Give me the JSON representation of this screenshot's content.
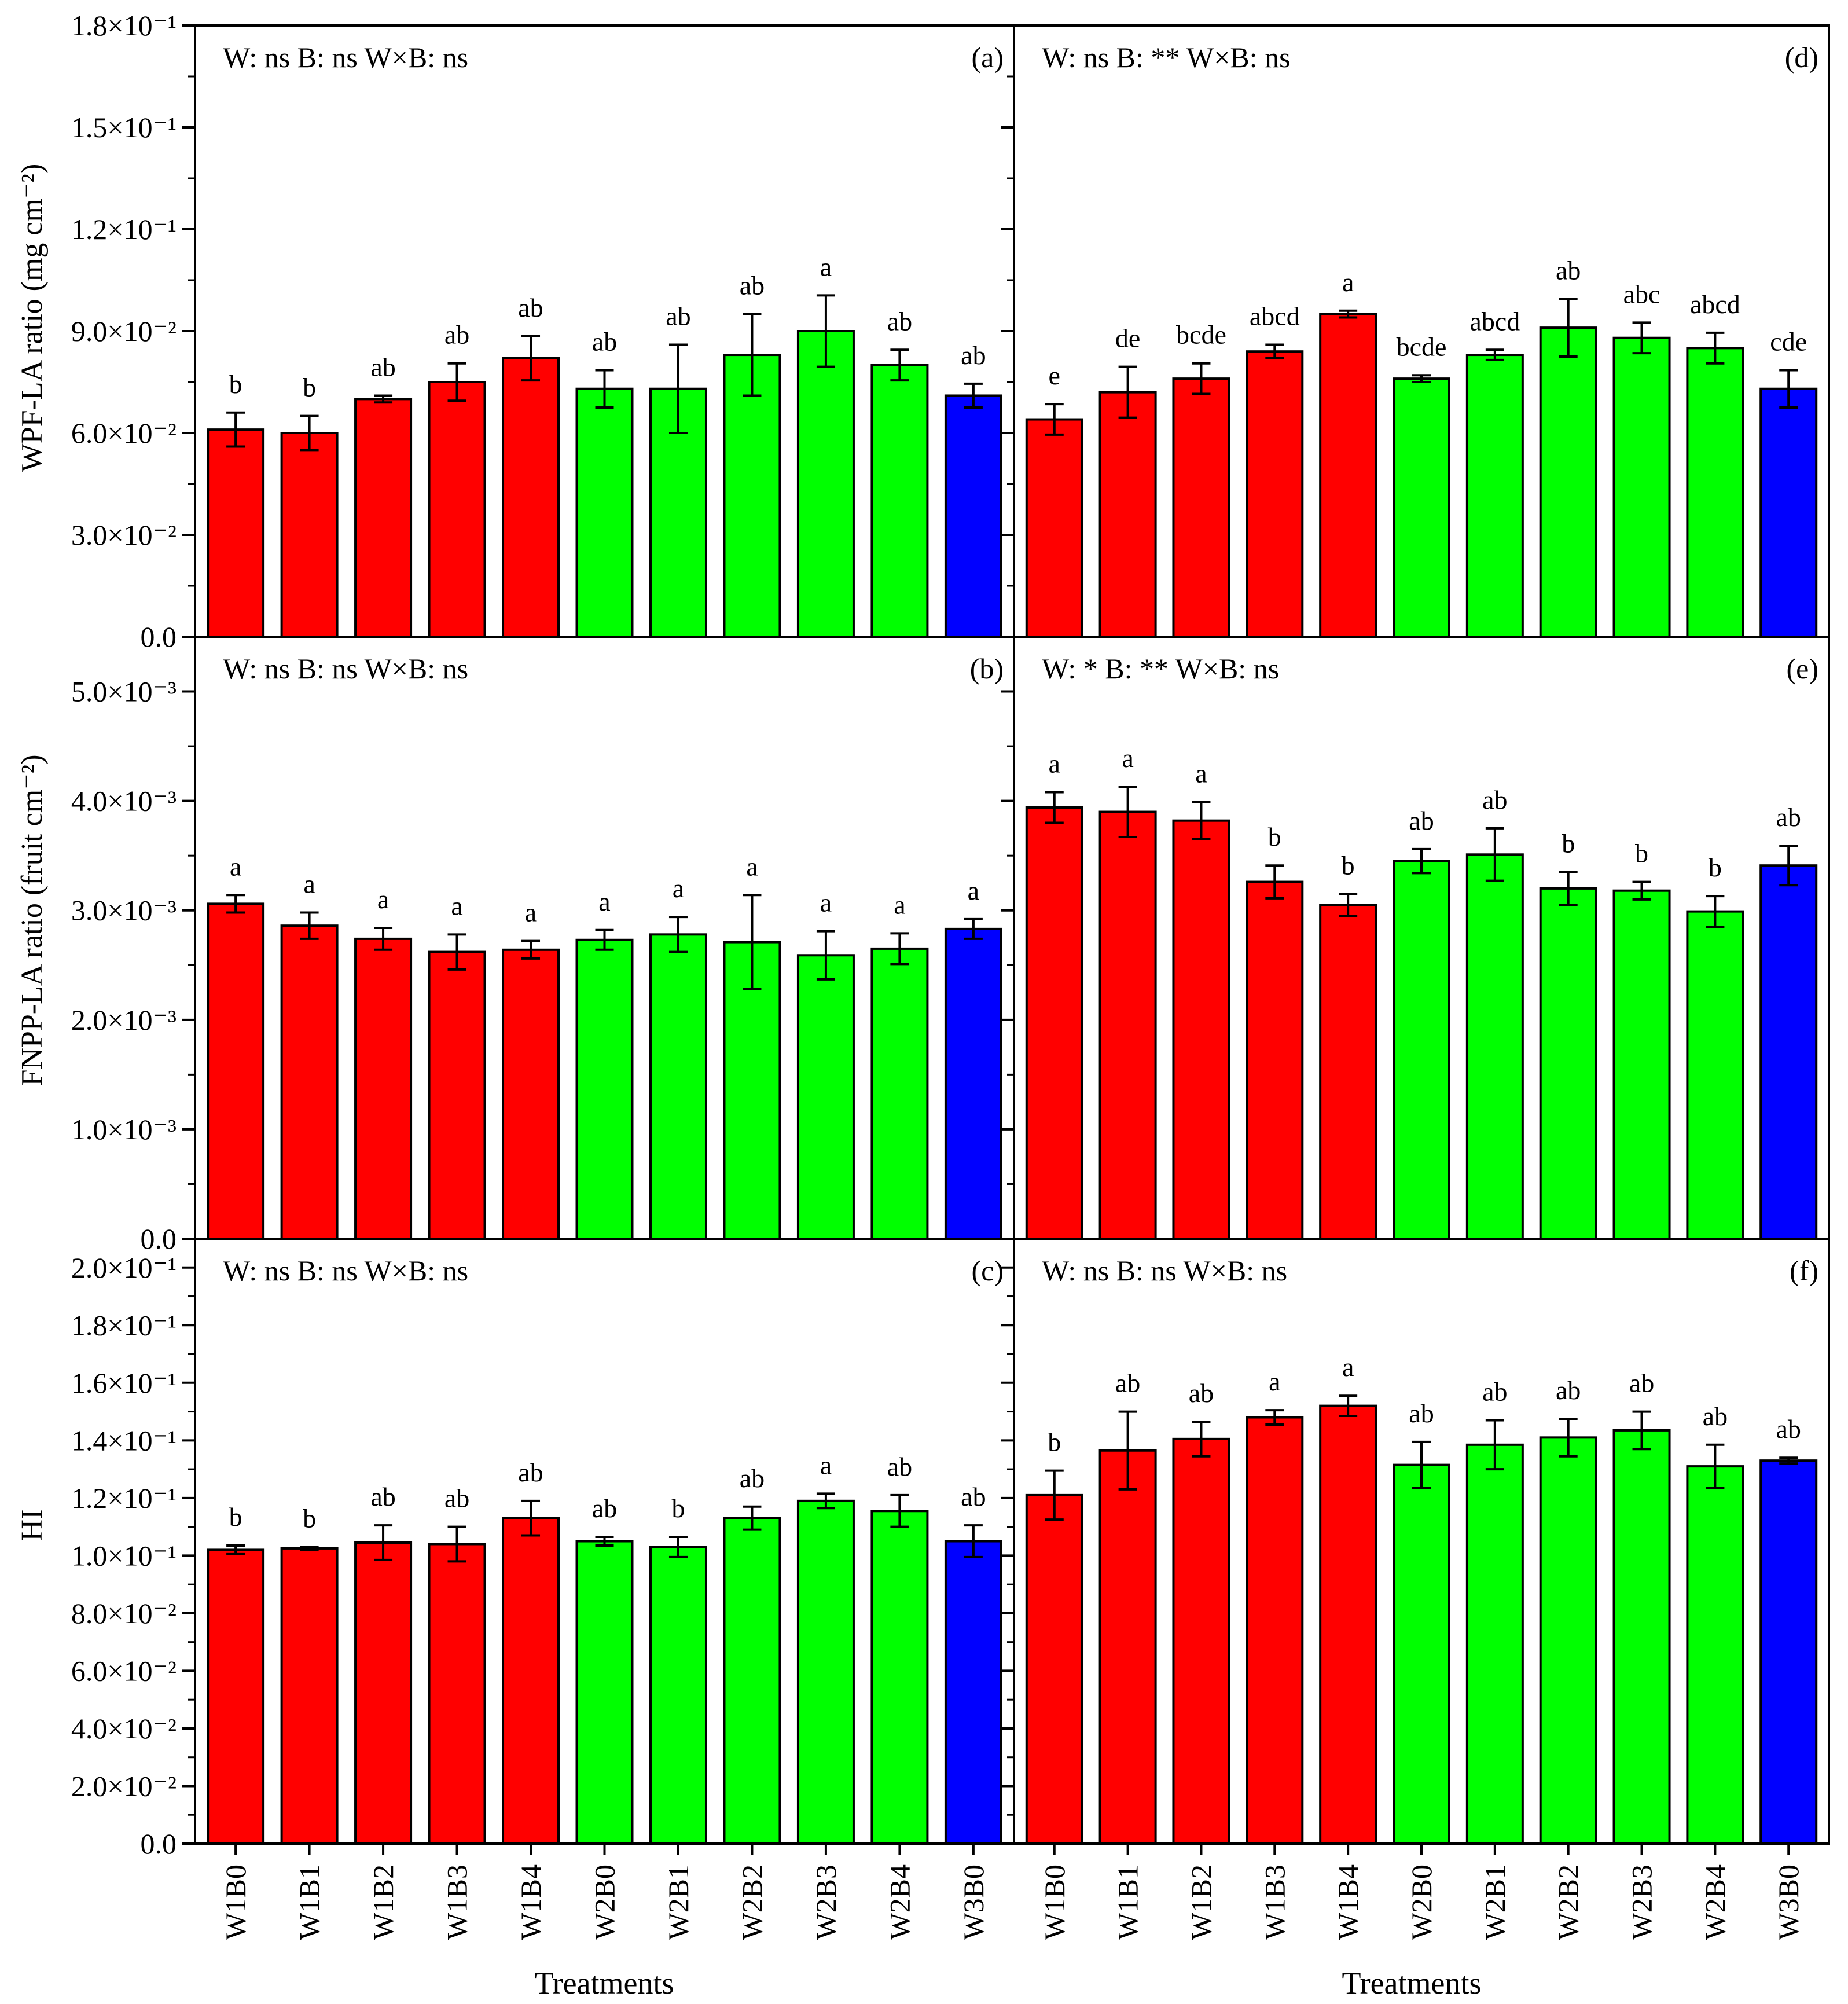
{
  "figure": {
    "x_title": "Treatments",
    "categories": [
      "W1B0",
      "W1B1",
      "W1B2",
      "W1B3",
      "W1B4",
      "W2B0",
      "W2B1",
      "W2B2",
      "W2B3",
      "W2B4",
      "W3B0"
    ],
    "colors": [
      "#ff0000",
      "#ff0000",
      "#ff0000",
      "#ff0000",
      "#ff0000",
      "#00ff00",
      "#00ff00",
      "#00ff00",
      "#00ff00",
      "#00ff00",
      "#0000ff"
    ],
    "rows": [
      {
        "ylabel": "WPF-LA ratio (mg cm⁻²)",
        "ylim": [
          0,
          0.18
        ],
        "ticks": [
          {
            "value": 0.0,
            "label": "0.0"
          },
          {
            "value": 0.03,
            "label": "3.0×10⁻²"
          },
          {
            "value": 0.06,
            "label": "6.0×10⁻²"
          },
          {
            "value": 0.09,
            "label": "9.0×10⁻²"
          },
          {
            "value": 0.12,
            "label": "1.2×10⁻¹"
          },
          {
            "value": 0.15,
            "label": "1.5×10⁻¹"
          },
          {
            "value": 0.18,
            "label": "1.8×10⁻¹"
          }
        ]
      },
      {
        "ylabel": "FNPP-LA ratio (fruit cm⁻²)",
        "ylim": [
          0,
          0.0055
        ],
        "ticks": [
          {
            "value": 0.0,
            "label": "0.0"
          },
          {
            "value": 0.001,
            "label": "1.0×10⁻³"
          },
          {
            "value": 0.002,
            "label": "2.0×10⁻³"
          },
          {
            "value": 0.003,
            "label": "3.0×10⁻³"
          },
          {
            "value": 0.004,
            "label": "4.0×10⁻³"
          },
          {
            "value": 0.005,
            "label": "5.0×10⁻³"
          }
        ]
      },
      {
        "ylabel": "HI",
        "ylim": [
          0,
          0.21
        ],
        "ticks": [
          {
            "value": 0.0,
            "label": "0.0"
          },
          {
            "value": 0.02,
            "label": "2.0×10⁻²"
          },
          {
            "value": 0.04,
            "label": "4.0×10⁻²"
          },
          {
            "value": 0.06,
            "label": "6.0×10⁻²"
          },
          {
            "value": 0.08,
            "label": "8.0×10⁻²"
          },
          {
            "value": 0.1,
            "label": "1.0×10⁻¹"
          },
          {
            "value": 0.12,
            "label": "1.2×10⁻¹"
          },
          {
            "value": 0.14,
            "label": "1.4×10⁻¹"
          },
          {
            "value": 0.16,
            "label": "1.6×10⁻¹"
          },
          {
            "value": 0.18,
            "label": "1.8×10⁻¹"
          },
          {
            "value": 0.2,
            "label": "2.0×10⁻¹"
          }
        ]
      }
    ]
  },
  "chart_data": [
    {
      "type": "bar",
      "panel": "(a)",
      "row": 0,
      "col": 0,
      "stat_text": "W: ns  B: ns  W×B: ns",
      "ylabel": "WPF-LA ratio (mg cm⁻²)",
      "xlabel": "Treatments",
      "categories": [
        "W1B0",
        "W1B1",
        "W1B2",
        "W1B3",
        "W1B4",
        "W2B0",
        "W2B1",
        "W2B2",
        "W2B3",
        "W2B4",
        "W3B0"
      ],
      "values": [
        0.061,
        0.06,
        0.07,
        0.075,
        0.082,
        0.073,
        0.073,
        0.083,
        0.09,
        0.08,
        0.071
      ],
      "errors": [
        0.005,
        0.005,
        0.001,
        0.0055,
        0.0065,
        0.0055,
        0.013,
        0.012,
        0.0105,
        0.0045,
        0.0035
      ],
      "letters": [
        "b",
        "b",
        "ab",
        "ab",
        "ab",
        "ab",
        "ab",
        "ab",
        "a",
        "ab",
        "ab"
      ],
      "ylim": [
        0,
        0.18
      ]
    },
    {
      "type": "bar",
      "panel": "(b)",
      "row": 1,
      "col": 0,
      "stat_text": "W: ns  B: ns  W×B: ns",
      "ylabel": "FNPP-LA ratio (fruit cm⁻²)",
      "xlabel": "Treatments",
      "categories": [
        "W1B0",
        "W1B1",
        "W1B2",
        "W1B3",
        "W1B4",
        "W2B0",
        "W2B1",
        "W2B2",
        "W2B3",
        "W2B4",
        "W3B0"
      ],
      "values": [
        0.00306,
        0.00286,
        0.00274,
        0.00262,
        0.00264,
        0.00273,
        0.00278,
        0.00271,
        0.00259,
        0.00265,
        0.00283
      ],
      "errors": [
        8e-05,
        0.00012,
        0.0001,
        0.00016,
        8e-05,
        9e-05,
        0.00016,
        0.00043,
        0.00022,
        0.00014,
        9e-05
      ],
      "letters": [
        "a",
        "a",
        "a",
        "a",
        "a",
        "a",
        "a",
        "a",
        "a",
        "a",
        "a"
      ],
      "ylim": [
        0,
        0.0055
      ]
    },
    {
      "type": "bar",
      "panel": "(c)",
      "row": 2,
      "col": 0,
      "stat_text": "W: ns  B: ns  W×B: ns",
      "ylabel": "HI",
      "xlabel": "Treatments",
      "categories": [
        "W1B0",
        "W1B1",
        "W1B2",
        "W1B3",
        "W1B4",
        "W2B0",
        "W2B1",
        "W2B2",
        "W2B3",
        "W2B4",
        "W3B0"
      ],
      "values": [
        0.102,
        0.1025,
        0.1045,
        0.104,
        0.113,
        0.105,
        0.103,
        0.113,
        0.119,
        0.1155,
        0.105
      ],
      "errors": [
        0.0015,
        0.0005,
        0.006,
        0.006,
        0.006,
        0.0015,
        0.0035,
        0.004,
        0.0025,
        0.0055,
        0.0055
      ],
      "letters": [
        "b",
        "b",
        "ab",
        "ab",
        "ab",
        "ab",
        "b",
        "ab",
        "a",
        "ab",
        "ab"
      ],
      "ylim": [
        0,
        0.21
      ]
    },
    {
      "type": "bar",
      "panel": "(d)",
      "row": 0,
      "col": 1,
      "stat_text": "W: ns  B: **  W×B: ns",
      "ylabel": "WPF-LA ratio (mg cm⁻²)",
      "xlabel": "Treatments",
      "categories": [
        "W1B0",
        "W1B1",
        "W1B2",
        "W1B3",
        "W1B4",
        "W2B0",
        "W2B1",
        "W2B2",
        "W2B3",
        "W2B4",
        "W3B0"
      ],
      "values": [
        0.064,
        0.072,
        0.076,
        0.084,
        0.095,
        0.076,
        0.083,
        0.091,
        0.088,
        0.085,
        0.073
      ],
      "errors": [
        0.0045,
        0.0075,
        0.0045,
        0.002,
        0.001,
        0.001,
        0.0015,
        0.0085,
        0.0045,
        0.0045,
        0.0055
      ],
      "letters": [
        "e",
        "de",
        "bcde",
        "abcd",
        "a",
        "bcde",
        "abcd",
        "ab",
        "abc",
        "abcd",
        "cde"
      ],
      "ylim": [
        0,
        0.18
      ]
    },
    {
      "type": "bar",
      "panel": "(e)",
      "row": 1,
      "col": 1,
      "stat_text": "W: *  B: **  W×B: ns",
      "ylabel": "FNPP-LA ratio (fruit cm⁻²)",
      "xlabel": "Treatments",
      "categories": [
        "W1B0",
        "W1B1",
        "W1B2",
        "W1B3",
        "W1B4",
        "W2B0",
        "W2B1",
        "W2B2",
        "W2B3",
        "W2B4",
        "W3B0"
      ],
      "values": [
        0.00394,
        0.0039,
        0.00382,
        0.00326,
        0.00305,
        0.00345,
        0.00351,
        0.0032,
        0.00318,
        0.00299,
        0.00341
      ],
      "errors": [
        0.00014,
        0.00023,
        0.00017,
        0.00015,
        0.0001,
        0.00011,
        0.00024,
        0.00015,
        8e-05,
        0.00014,
        0.00018
      ],
      "letters": [
        "a",
        "a",
        "a",
        "b",
        "b",
        "ab",
        "ab",
        "b",
        "b",
        "b",
        "ab"
      ],
      "ylim": [
        0,
        0.0055
      ]
    },
    {
      "type": "bar",
      "panel": "(f)",
      "row": 2,
      "col": 1,
      "stat_text": "W: ns  B: ns  W×B: ns",
      "ylabel": "HI",
      "xlabel": "Treatments",
      "categories": [
        "W1B0",
        "W1B1",
        "W1B2",
        "W1B3",
        "W1B4",
        "W2B0",
        "W2B1",
        "W2B2",
        "W2B3",
        "W2B4",
        "W3B0"
      ],
      "values": [
        0.121,
        0.1365,
        0.1405,
        0.148,
        0.152,
        0.1315,
        0.1385,
        0.141,
        0.1435,
        0.131,
        0.133
      ],
      "errors": [
        0.0085,
        0.0135,
        0.006,
        0.0025,
        0.0035,
        0.008,
        0.0085,
        0.0065,
        0.0065,
        0.0075,
        0.001
      ],
      "letters": [
        "b",
        "ab",
        "ab",
        "a",
        "a",
        "ab",
        "ab",
        "ab",
        "ab",
        "ab",
        "ab"
      ],
      "ylim": [
        0,
        0.21
      ]
    }
  ]
}
